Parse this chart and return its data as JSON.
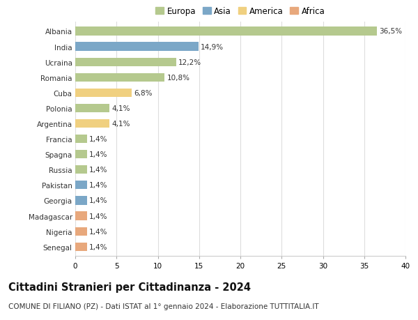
{
  "countries": [
    "Albania",
    "India",
    "Ucraina",
    "Romania",
    "Cuba",
    "Polonia",
    "Argentina",
    "Francia",
    "Spagna",
    "Russia",
    "Pakistan",
    "Georgia",
    "Madagascar",
    "Nigeria",
    "Senegal"
  ],
  "values": [
    36.5,
    14.9,
    12.2,
    10.8,
    6.8,
    4.1,
    4.1,
    1.4,
    1.4,
    1.4,
    1.4,
    1.4,
    1.4,
    1.4,
    1.4
  ],
  "labels": [
    "36,5%",
    "14,9%",
    "12,2%",
    "10,8%",
    "6,8%",
    "4,1%",
    "4,1%",
    "1,4%",
    "1,4%",
    "1,4%",
    "1,4%",
    "1,4%",
    "1,4%",
    "1,4%",
    "1,4%"
  ],
  "continents": [
    "Europa",
    "Asia",
    "Europa",
    "Europa",
    "America",
    "Europa",
    "America",
    "Europa",
    "Europa",
    "Europa",
    "Asia",
    "Asia",
    "Africa",
    "Africa",
    "Africa"
  ],
  "colors": {
    "Europa": "#b5c98e",
    "Asia": "#7ba7c7",
    "America": "#f0d080",
    "Africa": "#e8a87c"
  },
  "legend_order": [
    "Europa",
    "Asia",
    "America",
    "Africa"
  ],
  "title": "Cittadini Stranieri per Cittadinanza - 2024",
  "subtitle": "COMUNE DI FILIANO (PZ) - Dati ISTAT al 1° gennaio 2024 - Elaborazione TUTTITALIA.IT",
  "xlim": [
    0,
    40
  ],
  "xticks": [
    0,
    5,
    10,
    15,
    20,
    25,
    30,
    35,
    40
  ],
  "background_color": "#ffffff",
  "plot_bg_color": "#ffffff",
  "grid_color": "#dddddd",
  "bar_height": 0.55,
  "label_fontsize": 7.5,
  "title_fontsize": 10.5,
  "subtitle_fontsize": 7.5,
  "legend_fontsize": 8.5,
  "ytick_fontsize": 7.5
}
